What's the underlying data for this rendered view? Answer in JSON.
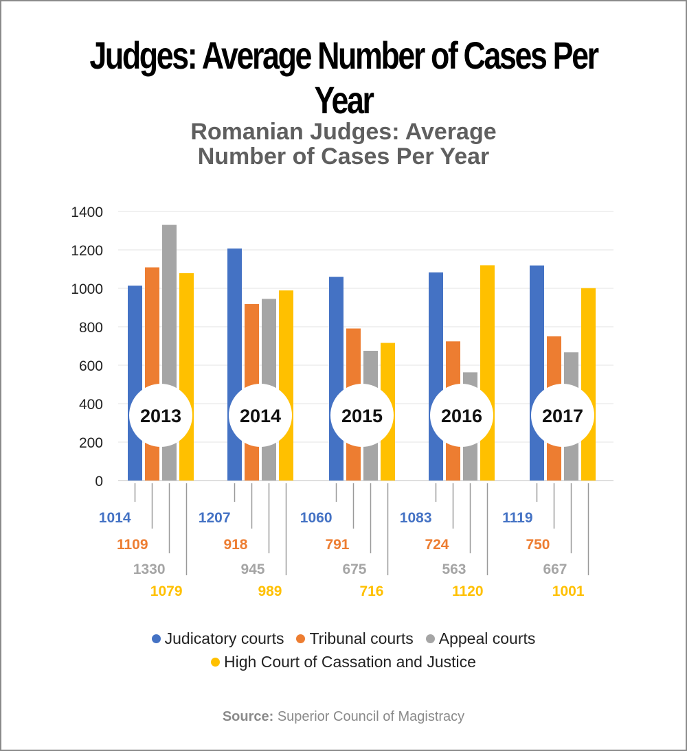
{
  "header": {
    "title": "Judges: Average Number of Cases Per Year"
  },
  "chart_data": {
    "type": "bar",
    "title_lines": [
      "Romanian Judges: Average",
      "Number of Cases Per Year"
    ],
    "categories": [
      "2013",
      "2014",
      "2015",
      "2016",
      "2017"
    ],
    "series": [
      {
        "name": "Judicatory courts",
        "color": "#4472c4",
        "values": [
          1014,
          1207,
          1060,
          1083,
          1119
        ]
      },
      {
        "name": "Tribunal courts",
        "color": "#ed7d31",
        "values": [
          1109,
          918,
          791,
          724,
          750
        ]
      },
      {
        "name": "Appeal courts",
        "color": "#a5a5a5",
        "values": [
          1330,
          945,
          675,
          563,
          667
        ]
      },
      {
        "name": "High Court of Cassation and Justice",
        "color": "#ffc000",
        "values": [
          1079,
          989,
          716,
          1120,
          1001
        ]
      }
    ],
    "yticks": [
      0,
      200,
      400,
      600,
      800,
      1000,
      1200,
      1400
    ],
    "ylim": [
      0,
      1400
    ],
    "grid": true,
    "legend_position": "bottom"
  },
  "source": {
    "label": "Source:",
    "text": "Superior Council of Magistracy"
  }
}
